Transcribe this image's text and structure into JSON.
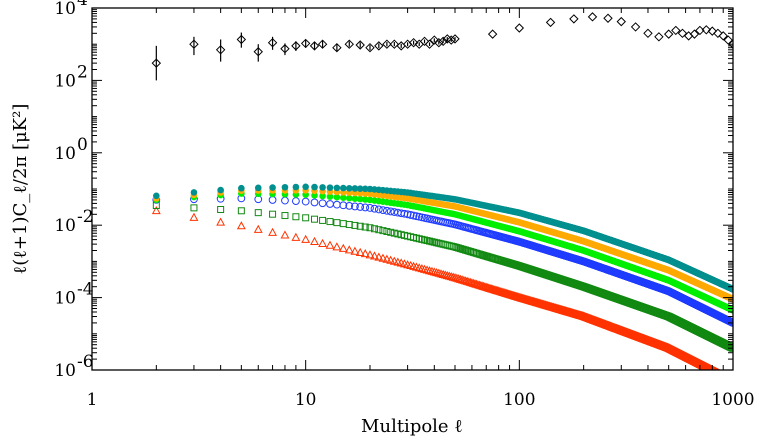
{
  "chart_data": {
    "type": "scatter",
    "title": "",
    "xlabel": "Multipole  ℓ",
    "ylabel": "ℓ(ℓ+1)C_ℓ/2π  [μK²]",
    "xscale": "log",
    "yscale": "log",
    "xlim": [
      1,
      1000
    ],
    "ylim": [
      1e-06,
      10000.0
    ],
    "grid": false,
    "legend": "none",
    "x_ticks": [
      {
        "value": 1,
        "label": "1"
      },
      {
        "value": 10,
        "label": "10"
      },
      {
        "value": 100,
        "label": "100"
      },
      {
        "value": 1000,
        "label": "1000"
      }
    ],
    "y_ticks": [
      {
        "value": 1e-06,
        "base": "10",
        "exp": "-6"
      },
      {
        "value": 0.0001,
        "base": "10",
        "exp": "-4"
      },
      {
        "value": 0.01,
        "base": "10",
        "exp": "-2"
      },
      {
        "value": 1,
        "base": "10",
        "exp": "0"
      },
      {
        "value": 100,
        "base": "10",
        "exp": "2"
      },
      {
        "value": 10000,
        "base": "10",
        "exp": "4"
      }
    ],
    "series": [
      {
        "marker": "diamond-open",
        "color": "#000000",
        "observations": [
          {
            "l": 2,
            "y": 300,
            "lo": 100,
            "hi": 900
          },
          {
            "l": 3,
            "y": 1000,
            "lo": 500,
            "hi": 1600
          },
          {
            "l": 4,
            "y": 700,
            "lo": 330,
            "hi": 1350
          },
          {
            "l": 5,
            "y": 1350,
            "lo": 800,
            "hi": 2100
          },
          {
            "l": 6,
            "y": 620,
            "lo": 330,
            "hi": 1000
          },
          {
            "l": 7,
            "y": 1100,
            "lo": 700,
            "hi": 1600
          },
          {
            "l": 8,
            "y": 750,
            "lo": 500,
            "hi": 1050
          },
          {
            "l": 9,
            "y": 900,
            "lo": 650,
            "hi": 1200
          },
          {
            "l": 10,
            "y": 1050,
            "lo": 800,
            "hi": 1350
          },
          {
            "l": 11,
            "y": 900,
            "lo": 700,
            "hi": 1150
          },
          {
            "l": 12,
            "y": 1000,
            "lo": 800,
            "hi": 1250
          },
          {
            "l": 14,
            "y": 800,
            "lo": 650,
            "hi": 1000
          },
          {
            "l": 16,
            "y": 1000,
            "lo": 850,
            "hi": 1200
          },
          {
            "l": 18,
            "y": 950,
            "lo": 800,
            "hi": 1130
          },
          {
            "l": 20,
            "y": 800,
            "lo": 680,
            "hi": 950
          },
          {
            "l": 22,
            "y": 900,
            "lo": 780,
            "hi": 1050
          },
          {
            "l": 24,
            "y": 1000,
            "lo": 870,
            "hi": 1150
          },
          {
            "l": 26,
            "y": 1000,
            "lo": 880,
            "hi": 1150
          },
          {
            "l": 28,
            "y": 900,
            "lo": 790,
            "hi": 1030
          },
          {
            "l": 30,
            "y": 1000,
            "lo": 880,
            "hi": 1130
          },
          {
            "l": 32,
            "y": 1100,
            "lo": 970,
            "hi": 1250
          },
          {
            "l": 34,
            "y": 1000,
            "lo": 890,
            "hi": 1130
          },
          {
            "l": 36,
            "y": 1200,
            "lo": 1060,
            "hi": 1350
          },
          {
            "l": 38,
            "y": 1000,
            "lo": 890,
            "hi": 1120
          },
          {
            "l": 40,
            "y": 1300,
            "lo": 1150,
            "hi": 1450
          },
          {
            "l": 42,
            "y": 1100,
            "lo": 980,
            "hi": 1230
          },
          {
            "l": 44,
            "y": 1200,
            "lo": 1070,
            "hi": 1350
          },
          {
            "l": 46,
            "y": 1400,
            "lo": 1250,
            "hi": 1570
          },
          {
            "l": 48,
            "y": 1300,
            "lo": 1160,
            "hi": 1450
          },
          {
            "l": 50,
            "y": 1400,
            "lo": 1250,
            "hi": 1570
          },
          {
            "l": 75,
            "y": 1900
          },
          {
            "l": 100,
            "y": 2800
          },
          {
            "l": 140,
            "y": 4000
          },
          {
            "l": 180,
            "y": 5000
          },
          {
            "l": 220,
            "y": 5700
          },
          {
            "l": 260,
            "y": 5200
          },
          {
            "l": 300,
            "y": 4200
          },
          {
            "l": 350,
            "y": 3000
          },
          {
            "l": 400,
            "y": 2000
          },
          {
            "l": 450,
            "y": 1600
          },
          {
            "l": 500,
            "y": 1900
          },
          {
            "l": 540,
            "y": 2400
          },
          {
            "l": 580,
            "y": 2000
          },
          {
            "l": 620,
            "y": 1700
          },
          {
            "l": 660,
            "y": 1900
          },
          {
            "l": 700,
            "y": 2400
          },
          {
            "l": 750,
            "y": 2500
          },
          {
            "l": 800,
            "y": 2300
          },
          {
            "l": 850,
            "y": 2000
          },
          {
            "l": 900,
            "y": 1700
          },
          {
            "l": 950,
            "y": 1300
          },
          {
            "l": 1000,
            "y": 1000
          }
        ]
      },
      {
        "marker": "circle-filled",
        "color": "#00908f",
        "curve": [
          [
            2,
            0.065
          ],
          [
            5,
            0.105
          ],
          [
            10,
            0.115
          ],
          [
            20,
            0.1
          ],
          [
            30,
            0.08
          ],
          [
            50,
            0.052
          ],
          [
            100,
            0.022
          ],
          [
            200,
            0.007
          ],
          [
            500,
            0.0011
          ],
          [
            1000,
            0.00017
          ]
        ]
      },
      {
        "marker": "circle-filled",
        "color": "#ffaa00",
        "curve": [
          [
            2,
            0.055
          ],
          [
            5,
            0.09
          ],
          [
            10,
            0.092
          ],
          [
            20,
            0.074
          ],
          [
            30,
            0.055
          ],
          [
            50,
            0.033
          ],
          [
            100,
            0.012
          ],
          [
            200,
            0.0036
          ],
          [
            500,
            0.00057
          ],
          [
            1000,
            9e-05
          ]
        ]
      },
      {
        "marker": "circle-filled",
        "color": "#00ee00",
        "curve": [
          [
            2,
            0.05
          ],
          [
            5,
            0.075
          ],
          [
            10,
            0.07
          ],
          [
            20,
            0.05
          ],
          [
            30,
            0.036
          ],
          [
            50,
            0.02
          ],
          [
            100,
            0.0068
          ],
          [
            200,
            0.002
          ],
          [
            500,
            0.0003
          ],
          [
            1000,
            4.5e-05
          ]
        ]
      },
      {
        "marker": "circle-open",
        "color": "#1f3cff",
        "curve": [
          [
            2,
            0.05
          ],
          [
            5,
            0.055
          ],
          [
            10,
            0.045
          ],
          [
            20,
            0.03
          ],
          [
            30,
            0.02
          ],
          [
            50,
            0.0105
          ],
          [
            100,
            0.0035
          ],
          [
            200,
            0.001
          ],
          [
            500,
            0.00015
          ],
          [
            1000,
            2e-05
          ]
        ]
      },
      {
        "marker": "square-open",
        "color": "#138a13",
        "curve": [
          [
            2,
            0.035
          ],
          [
            5,
            0.025
          ],
          [
            10,
            0.016
          ],
          [
            20,
            0.0085
          ],
          [
            30,
            0.005
          ],
          [
            50,
            0.0025
          ],
          [
            100,
            0.00075
          ],
          [
            200,
            0.0002
          ],
          [
            500,
            3e-05
          ],
          [
            1000,
            4e-06
          ]
        ]
      },
      {
        "marker": "triangle-open",
        "color": "#ff3300",
        "curve": [
          [
            2,
            0.025
          ],
          [
            5,
            0.0095
          ],
          [
            10,
            0.004
          ],
          [
            20,
            0.0015
          ],
          [
            30,
            0.0008
          ],
          [
            50,
            0.00035
          ],
          [
            100,
            0.0001
          ],
          [
            200,
            3e-05
          ],
          [
            500,
            4e-06
          ],
          [
            1000,
            5e-07
          ]
        ]
      }
    ]
  }
}
